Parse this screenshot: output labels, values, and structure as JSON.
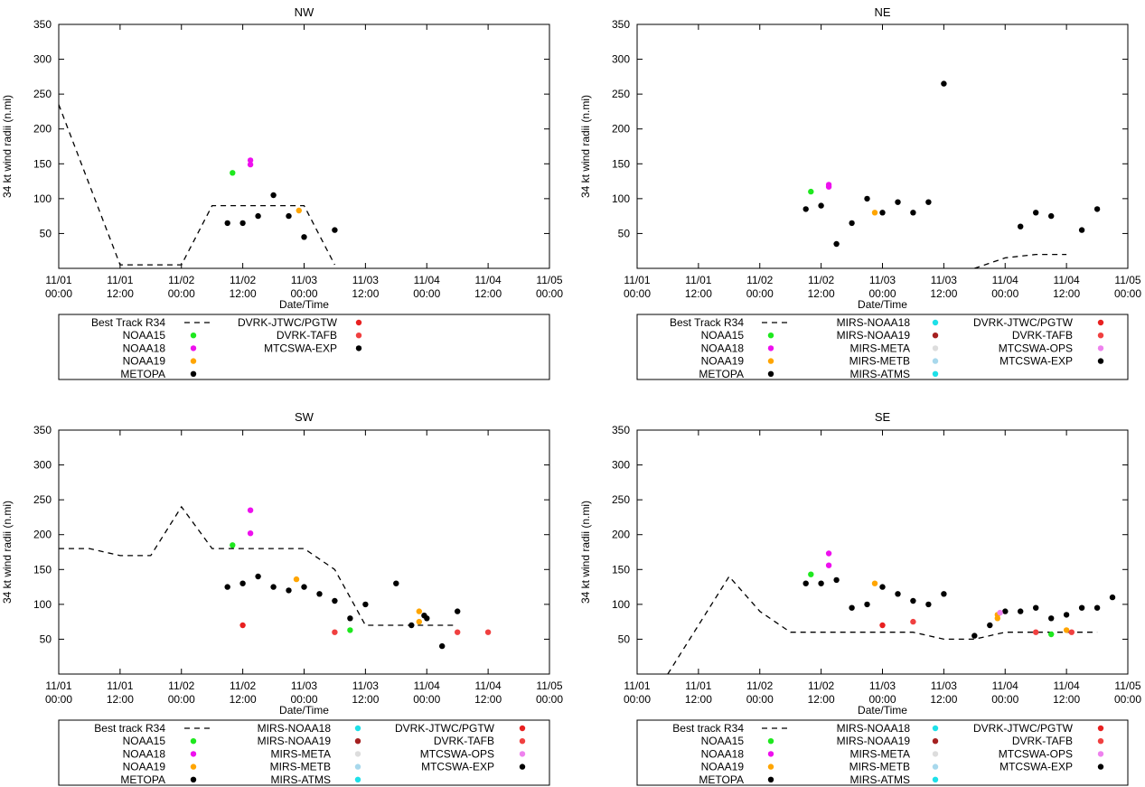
{
  "colors": {
    "NOAA15": "#1ee81e",
    "NOAA18": "#ee10ee",
    "NOAA19": "#ffa500",
    "METOPA": "#000000",
    "MIRS-NOAA18": "#1ee0e8",
    "MIRS-NOAA19": "#a52020",
    "MIRS-META": "#dddddd",
    "MIRS-METB": "#a8d8ec",
    "MIRS-ATMS": "#1ee0e8",
    "DVRK-JTWC/PGTW": "#e82020",
    "DVRK-TAFB": "#f04040",
    "MTCSWA-OPS": "#ee82ee",
    "MTCSWA-EXP": "#000000"
  },
  "chart_data": [
    {
      "type": "scatter",
      "title": "NW",
      "xlabel": "Date/Time",
      "ylabel": "34 kt wind radii (n.mi)",
      "xlim_hours": [
        0,
        96
      ],
      "ylim": [
        0,
        350
      ],
      "yticks": [
        50,
        100,
        150,
        200,
        250,
        300,
        350
      ],
      "xtick_labels": [
        [
          "11/01",
          "00:00"
        ],
        [
          "11/01",
          "12:00"
        ],
        [
          "11/02",
          "00:00"
        ],
        [
          "11/02",
          "12:00"
        ],
        [
          "11/03",
          "00:00"
        ],
        [
          "11/03",
          "12:00"
        ],
        [
          "11/04",
          "00:00"
        ],
        [
          "11/04",
          "12:00"
        ],
        [
          "11/05",
          "00:00"
        ]
      ],
      "best_track_label": "Best Track R34",
      "best_track": [
        [
          0,
          235
        ],
        [
          6,
          120
        ],
        [
          12,
          5
        ],
        [
          24,
          5
        ],
        [
          30,
          90
        ],
        [
          42,
          90
        ],
        [
          48,
          90
        ],
        [
          54,
          5
        ]
      ],
      "series": [
        {
          "name": "NOAA15",
          "points": [
            [
              34,
              137
            ]
          ]
        },
        {
          "name": "NOAA18",
          "points": [
            [
              37.5,
              155
            ],
            [
              37.5,
              149
            ]
          ]
        },
        {
          "name": "NOAA19",
          "points": [
            [
              47,
              83
            ]
          ]
        },
        {
          "name": "METOPA",
          "points": []
        },
        {
          "name": "DVRK-JTWC/PGTW",
          "points": []
        },
        {
          "name": "DVRK-TAFB",
          "points": []
        },
        {
          "name": "MTCSWA-EXP",
          "points": [
            [
              33,
              65
            ],
            [
              36,
              65
            ],
            [
              39,
              75
            ],
            [
              42,
              105
            ],
            [
              45,
              75
            ],
            [
              48,
              45
            ],
            [
              54,
              55
            ]
          ]
        }
      ],
      "legend_columns": [
        [
          "NOAA15",
          "NOAA18",
          "NOAA19",
          "METOPA"
        ],
        [
          "DVRK-JTWC/PGTW",
          "DVRK-TAFB",
          "MTCSWA-EXP"
        ]
      ]
    },
    {
      "type": "scatter",
      "title": "NE",
      "xlabel": "Date/Time",
      "ylabel": "34 kt wind radii (n.mi)",
      "xlim_hours": [
        0,
        96
      ],
      "ylim": [
        0,
        350
      ],
      "yticks": [
        50,
        100,
        150,
        200,
        250,
        300,
        350
      ],
      "xtick_labels": [
        [
          "11/01",
          "00:00"
        ],
        [
          "11/01",
          "12:00"
        ],
        [
          "11/02",
          "00:00"
        ],
        [
          "11/02",
          "12:00"
        ],
        [
          "11/03",
          "00:00"
        ],
        [
          "11/03",
          "12:00"
        ],
        [
          "11/04",
          "00:00"
        ],
        [
          "11/04",
          "12:00"
        ],
        [
          "11/05",
          "00:00"
        ]
      ],
      "best_track_label": "Best Track R34",
      "best_track": [
        [
          66,
          0
        ],
        [
          72,
          15
        ],
        [
          78,
          20
        ],
        [
          84,
          20
        ]
      ],
      "series": [
        {
          "name": "NOAA15",
          "points": [
            [
              34,
              110
            ]
          ]
        },
        {
          "name": "NOAA18",
          "points": [
            [
              37.5,
              120
            ],
            [
              37.5,
              117
            ]
          ]
        },
        {
          "name": "NOAA19",
          "points": [
            [
              46.5,
              80
            ]
          ]
        },
        {
          "name": "METOPA",
          "points": []
        },
        {
          "name": "MIRS-NOAA18",
          "points": []
        },
        {
          "name": "MIRS-NOAA19",
          "points": []
        },
        {
          "name": "MIRS-META",
          "points": []
        },
        {
          "name": "MIRS-METB",
          "points": []
        },
        {
          "name": "MIRS-ATMS",
          "points": []
        },
        {
          "name": "DVRK-JTWC/PGTW",
          "points": []
        },
        {
          "name": "DVRK-TAFB",
          "points": []
        },
        {
          "name": "MTCSWA-OPS",
          "points": []
        },
        {
          "name": "MTCSWA-EXP",
          "points": [
            [
              33,
              85
            ],
            [
              36,
              90
            ],
            [
              39,
              35
            ],
            [
              42,
              65
            ],
            [
              45,
              100
            ],
            [
              48,
              80
            ],
            [
              51,
              95
            ],
            [
              54,
              80
            ],
            [
              57,
              95
            ],
            [
              60,
              265
            ],
            [
              75,
              60
            ],
            [
              78,
              80
            ],
            [
              81,
              75
            ],
            [
              87,
              55
            ],
            [
              90,
              85
            ]
          ]
        }
      ],
      "legend_columns": [
        [
          "NOAA15",
          "NOAA18",
          "NOAA19",
          "METOPA"
        ],
        [
          "MIRS-NOAA18",
          "MIRS-NOAA19",
          "MIRS-META",
          "MIRS-METB",
          "MIRS-ATMS"
        ],
        [
          "DVRK-JTWC/PGTW",
          "DVRK-TAFB",
          "MTCSWA-OPS",
          "MTCSWA-EXP"
        ]
      ]
    },
    {
      "type": "scatter",
      "title": "SW",
      "xlabel": "Date/Time",
      "ylabel": "34 kt wind radii (n.mi)",
      "xlim_hours": [
        0,
        96
      ],
      "ylim": [
        0,
        350
      ],
      "yticks": [
        50,
        100,
        150,
        200,
        250,
        300,
        350
      ],
      "xtick_labels": [
        [
          "11/01",
          "00:00"
        ],
        [
          "11/01",
          "12:00"
        ],
        [
          "11/02",
          "00:00"
        ],
        [
          "11/02",
          "12:00"
        ],
        [
          "11/03",
          "00:00"
        ],
        [
          "11/03",
          "12:00"
        ],
        [
          "11/04",
          "00:00"
        ],
        [
          "11/04",
          "12:00"
        ],
        [
          "11/05",
          "00:00"
        ]
      ],
      "best_track_label": "Best track R34",
      "best_track": [
        [
          0,
          180
        ],
        [
          6,
          180
        ],
        [
          12,
          170
        ],
        [
          18,
          170
        ],
        [
          24,
          240
        ],
        [
          30,
          180
        ],
        [
          42,
          180
        ],
        [
          48,
          180
        ],
        [
          54,
          150
        ],
        [
          60,
          70
        ],
        [
          72,
          70
        ],
        [
          78,
          70
        ]
      ],
      "series": [
        {
          "name": "NOAA15",
          "points": [
            [
              34,
              185
            ],
            [
              57,
              63
            ]
          ]
        },
        {
          "name": "NOAA18",
          "points": [
            [
              37.5,
              235
            ],
            [
              37.5,
              202
            ]
          ]
        },
        {
          "name": "NOAA19",
          "points": [
            [
              46.5,
              136
            ],
            [
              70.5,
              90
            ],
            [
              70.5,
              75
            ]
          ]
        },
        {
          "name": "METOPA",
          "points": [
            [
              71.5,
              84
            ]
          ]
        },
        {
          "name": "MIRS-NOAA18",
          "points": []
        },
        {
          "name": "MIRS-NOAA19",
          "points": []
        },
        {
          "name": "MIRS-META",
          "points": []
        },
        {
          "name": "MIRS-METB",
          "points": []
        },
        {
          "name": "MIRS-ATMS",
          "points": []
        },
        {
          "name": "DVRK-JTWC/PGTW",
          "points": [
            [
              36,
              70
            ]
          ]
        },
        {
          "name": "DVRK-TAFB",
          "points": [
            [
              54,
              60
            ],
            [
              78,
              60
            ],
            [
              84,
              60
            ]
          ]
        },
        {
          "name": "MTCSWA-OPS",
          "points": []
        },
        {
          "name": "MTCSWA-EXP",
          "points": [
            [
              33,
              125
            ],
            [
              36,
              130
            ],
            [
              39,
              140
            ],
            [
              42,
              125
            ],
            [
              45,
              120
            ],
            [
              48,
              125
            ],
            [
              51,
              115
            ],
            [
              54,
              105
            ],
            [
              57,
              80
            ],
            [
              60,
              100
            ],
            [
              66,
              130
            ],
            [
              69,
              70
            ],
            [
              72,
              80
            ],
            [
              75,
              40
            ],
            [
              78,
              90
            ]
          ]
        }
      ],
      "legend_columns": [
        [
          "NOAA15",
          "NOAA18",
          "NOAA19",
          "METOPA"
        ],
        [
          "MIRS-NOAA18",
          "MIRS-NOAA19",
          "MIRS-META",
          "MIRS-METB",
          "MIRS-ATMS"
        ],
        [
          "DVRK-JTWC/PGTW",
          "DVRK-TAFB",
          "MTCSWA-OPS",
          "MTCSWA-EXP"
        ]
      ]
    },
    {
      "type": "scatter",
      "title": "SE",
      "xlabel": "Date/Time",
      "ylabel": "34 kt wind radii (n.mi)",
      "xlim_hours": [
        0,
        96
      ],
      "ylim": [
        0,
        350
      ],
      "yticks": [
        50,
        100,
        150,
        200,
        250,
        300,
        350
      ],
      "xtick_labels": [
        [
          "11/01",
          "00:00"
        ],
        [
          "11/01",
          "12:00"
        ],
        [
          "11/02",
          "00:00"
        ],
        [
          "11/02",
          "12:00"
        ],
        [
          "11/03",
          "00:00"
        ],
        [
          "11/03",
          "12:00"
        ],
        [
          "11/04",
          "00:00"
        ],
        [
          "11/04",
          "12:00"
        ],
        [
          "11/05",
          "00:00"
        ]
      ],
      "best_track_label": "Best track R34",
      "best_track": [
        [
          6,
          0
        ],
        [
          18,
          140
        ],
        [
          24,
          90
        ],
        [
          30,
          60
        ],
        [
          42,
          60
        ],
        [
          48,
          60
        ],
        [
          54,
          60
        ],
        [
          60,
          50
        ],
        [
          66,
          50
        ],
        [
          72,
          60
        ],
        [
          78,
          60
        ],
        [
          84,
          60
        ],
        [
          90,
          60
        ]
      ],
      "series": [
        {
          "name": "NOAA15",
          "points": [
            [
              34,
              143
            ],
            [
              81,
              57
            ]
          ]
        },
        {
          "name": "NOAA18",
          "points": [
            [
              37.5,
              173
            ],
            [
              37.5,
              156
            ]
          ]
        },
        {
          "name": "NOAA19",
          "points": [
            [
              46.5,
              130
            ],
            [
              70.5,
              85
            ],
            [
              70.5,
              80
            ],
            [
              84,
              63
            ]
          ]
        },
        {
          "name": "METOPA",
          "points": [
            [
              72,
              90
            ]
          ]
        },
        {
          "name": "MIRS-NOAA18",
          "points": []
        },
        {
          "name": "MIRS-NOAA19",
          "points": []
        },
        {
          "name": "MIRS-META",
          "points": []
        },
        {
          "name": "MIRS-METB",
          "points": []
        },
        {
          "name": "MIRS-ATMS",
          "points": []
        },
        {
          "name": "DVRK-JTWC/PGTW",
          "points": [
            [
              48,
              70
            ]
          ]
        },
        {
          "name": "DVRK-TAFB",
          "points": [
            [
              54,
              75
            ],
            [
              78,
              60
            ],
            [
              85,
              60
            ]
          ]
        },
        {
          "name": "MTCSWA-OPS",
          "points": [
            [
              71,
              88
            ]
          ]
        },
        {
          "name": "MTCSWA-EXP",
          "points": [
            [
              33,
              130
            ],
            [
              36,
              130
            ],
            [
              39,
              135
            ],
            [
              42,
              95
            ],
            [
              45,
              100
            ],
            [
              48,
              125
            ],
            [
              51,
              115
            ],
            [
              54,
              105
            ],
            [
              57,
              100
            ],
            [
              60,
              115
            ],
            [
              66,
              55
            ],
            [
              69,
              70
            ],
            [
              75,
              90
            ],
            [
              78,
              95
            ],
            [
              81,
              80
            ],
            [
              84,
              85
            ],
            [
              87,
              95
            ],
            [
              90,
              95
            ],
            [
              93,
              110
            ]
          ]
        }
      ],
      "legend_columns": [
        [
          "NOAA15",
          "NOAA18",
          "NOAA19",
          "METOPA"
        ],
        [
          "MIRS-NOAA18",
          "MIRS-NOAA19",
          "MIRS-META",
          "MIRS-METB",
          "MIRS-ATMS"
        ],
        [
          "DVRK-JTWC/PGTW",
          "DVRK-TAFB",
          "MTCSWA-OPS",
          "MTCSWA-EXP"
        ]
      ]
    }
  ]
}
